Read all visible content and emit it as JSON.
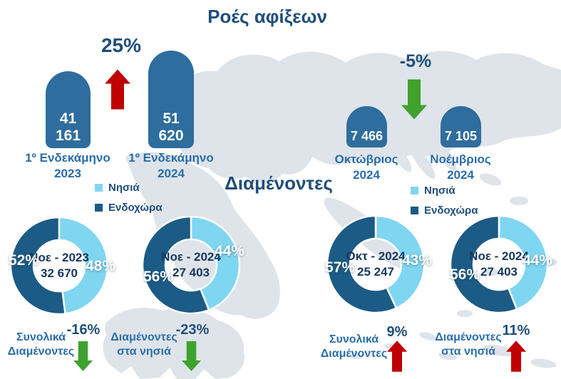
{
  "title": "Ροές αφίξεων",
  "arrivals": {
    "change_2024_vs_2023": "25%",
    "change_nov_vs_oct": "-5%",
    "bars": [
      {
        "value": "41 161",
        "label": "1º Ενδεκάμηνο\n2023"
      },
      {
        "value": "51 620",
        "label": "1º Ενδεκάμηνο\n2024"
      },
      {
        "value": "7 466",
        "label": "Οκτώβριος\n2024"
      },
      {
        "value": "7 105",
        "label": "Νοέμβριος\n2024"
      }
    ]
  },
  "residents": {
    "title": "Διαμένοντες",
    "legend": {
      "islands": "Νησιά",
      "mainland": "Ενδοχώρα"
    },
    "donuts": [
      {
        "center": "Νοε - 2023\n32 670",
        "mainland_label": "52%",
        "islands_label": "48%",
        "islands_pct": 48
      },
      {
        "center": "Νοε - 2024\n27 403",
        "mainland_label": "56%",
        "islands_label": "44%",
        "islands_pct": 44
      },
      {
        "center": "Οκτ - 2024\n25 247",
        "mainland_label": "57%",
        "islands_label": "43%",
        "islands_pct": 43
      },
      {
        "center": "Νοε - 2024\n27 403",
        "mainland_label": "56%",
        "islands_label": "44%",
        "islands_pct": 44
      }
    ],
    "annotations": [
      {
        "label": "Συνολικά\nΔιαμένοντες",
        "value": "-16%",
        "direction": "down"
      },
      {
        "label": "Διαμένοντες\nστα νησιά",
        "value": "-23%",
        "direction": "down"
      },
      {
        "label": "Συνολικά\nΔιαμένοντες",
        "value": "9%",
        "direction": "up"
      },
      {
        "label": "Διαμένοντες\nστα νησιά",
        "value": "11%",
        "direction": "up"
      }
    ]
  },
  "colors": {
    "bar_blue": "#2E6D9D",
    "donut_mainland": "#1C5B85",
    "donut_islands": "#7FD6F1",
    "navy_text": "#1F4E79",
    "label_blue": "#2A6DA8",
    "increase_red": "#C00000",
    "decrease_green": "#3FA12E",
    "map_fill": "#DEE4E9"
  },
  "chart_data": [
    {
      "type": "bar",
      "title": "Ροές αφίξεων",
      "categories": [
        "1º Ενδεκάμηνο 2023",
        "1º Ενδεκάμηνο 2024",
        "Οκτώβριος 2024",
        "Νοέμβριος 2024"
      ],
      "values": [
        41161,
        51620,
        7466,
        7105
      ],
      "annotations": [
        {
          "text": "25%",
          "compares": [
            "1º Ενδεκάμηνο 2023",
            "1º Ενδεκάμηνο 2024"
          ],
          "direction": "up"
        },
        {
          "text": "-5%",
          "compares": [
            "Οκτώβριος 2024",
            "Νοέμβριος 2024"
          ],
          "direction": "down"
        }
      ]
    },
    {
      "type": "pie",
      "title": "Διαμένοντες",
      "legend_entries": [
        "Νησιά",
        "Ενδοχώρα"
      ],
      "legend_position": "above-donuts",
      "donuts": [
        {
          "label": "Νοε - 2023",
          "total": 32670,
          "islands_pct": 48,
          "mainland_pct": 52
        },
        {
          "label": "Νοε - 2024",
          "total": 27403,
          "islands_pct": 44,
          "mainland_pct": 56
        },
        {
          "label": "Οκτ - 2024",
          "total": 25247,
          "islands_pct": 43,
          "mainland_pct": 57
        },
        {
          "label": "Νοε - 2024",
          "total": 27403,
          "islands_pct": 44,
          "mainland_pct": 56
        }
      ],
      "changes": [
        {
          "label": "Συνολικά Διαμένοντες",
          "value_pct": -16
        },
        {
          "label": "Διαμένοντες στα νησιά",
          "value_pct": -23
        },
        {
          "label": "Συνολικά Διαμένοντες",
          "value_pct": 9
        },
        {
          "label": "Διαμένοντες στα νησιά",
          "value_pct": 11
        }
      ]
    }
  ]
}
